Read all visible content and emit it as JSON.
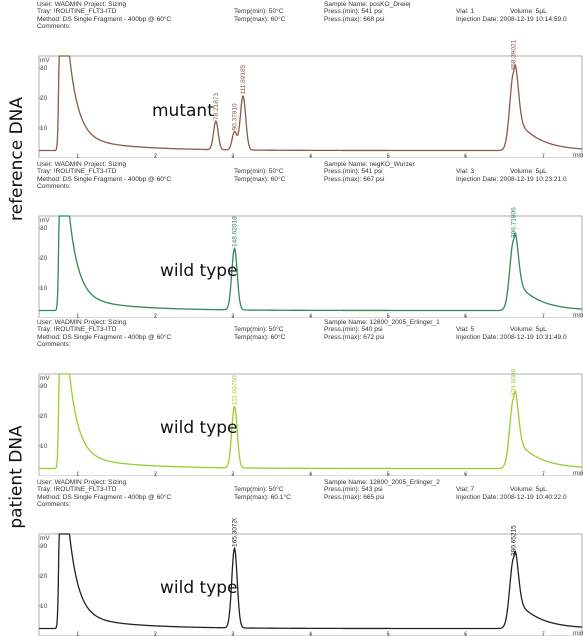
{
  "side_labels": {
    "reference": "reference DNA",
    "patient": "patient DNA"
  },
  "panels": [
    {
      "header": {
        "user": "User: WADMIN",
        "project": "Project: Sizing",
        "tray": "Tray: !ROUTINE_FLT3-ITD",
        "method": "Method: DS Single Fragment - 400bp @ 60°C",
        "comments": "Comments:",
        "temp_min": "Temp(min): 50°C",
        "temp_max": "Temp(max): 60°C",
        "sample": "Sample Name: posKO_Dreiej",
        "press_min": "Press.(min): 541 psi",
        "press_max": "Press.(max): 668 psi",
        "vial": "Vial: 1",
        "volume": "Volume: 5µL",
        "injection": "Injection Date: 2008-12-19 10:14:59.0"
      },
      "annotation": "mutant",
      "color": "#8b5a4a"
    },
    {
      "header": {
        "user": "User: WADMIN",
        "project": "Project: Sizing",
        "tray": "Tray: !ROUTINE_FLT3-ITD",
        "method": "Method: DS Single Fragment - 400bp @ 60°C",
        "comments": "Comments:",
        "temp_min": "Temp(min): 50°C",
        "temp_max": "Temp(max): 60°C",
        "sample": "Sample Name: negKO_Wurzer",
        "press_min": "Press.(min): 541 psi",
        "press_max": "Press.(max): 667 psi",
        "vial": "Vial: 3",
        "volume": "Volume: 5µL",
        "injection": "Injection Date: 2008-12-19 10:23:21.0"
      },
      "annotation": "wild type",
      "color": "#2e8b57"
    },
    {
      "header": {
        "user": "User: WADMIN",
        "project": "Project: Sizing",
        "tray": "Tray: !ROUTINE_FLT3-ITD",
        "method": "Method: DS Single Fragment - 400bp @ 60°C",
        "comments": "Comments:",
        "temp_min": "Temp(min): 50°C",
        "temp_max": "Temp(max): 60°C",
        "sample": "Sample Name: 12600_2005_Erlinger_1",
        "press_min": "Press.(min): 540 psi",
        "press_max": "Press.(max): 672 psi",
        "vial": "Vial: 5",
        "volume": "Volume: 5µL",
        "injection": "Injection Date: 2008-12-19 10:31:49.0"
      },
      "annotation": "wild type",
      "color": "#9acd32"
    },
    {
      "header": {
        "user": "User: WADMIN",
        "project": "Project: Sizing",
        "tray": "Tray: !ROUTINE_FLT3-ITD",
        "method": "Method: DS Single Fragment - 400bp @ 60°C",
        "comments": "Comments:",
        "temp_min": "Temp(min): 50°C",
        "temp_max": "Temp(max): 60.1°C",
        "sample": "Sample Name: 12600_2005_Erlinger_2",
        "press_min": "Press.(min): 543 psi",
        "press_max": "Press.(max): 665 psi",
        "vial": "Vial: 7",
        "volume": "Volume: 5µL",
        "injection": "Injection Date: 2008-12-19 10:40:22.0"
      },
      "annotation": "wild type",
      "color": "#222222"
    }
  ],
  "chart_data": [
    {
      "type": "line",
      "title": "",
      "xlabel": "min",
      "ylabel": "mV",
      "xlim": [
        0.5,
        7.5
      ],
      "ylim": [
        0,
        34
      ],
      "grid": false,
      "x_ticks": [
        1,
        2,
        3,
        4,
        5,
        6,
        7
      ],
      "y_ticks": [
        10,
        20,
        30
      ],
      "baseline": 2.5,
      "dye_front": 0.78,
      "peaks": [
        {
          "x": 2.78,
          "height": 9.5,
          "width": 0.03,
          "label": "78.21873"
        },
        {
          "x": 3.02,
          "height": 6.0,
          "width": 0.03,
          "label": "90.37910"
        },
        {
          "x": 3.13,
          "height": 18.0,
          "width": 0.035,
          "label": "111.89185"
        },
        {
          "x": 6.62,
          "height": 26.0,
          "width": 0.05,
          "tail": true,
          "label": "458.39021"
        }
      ]
    },
    {
      "type": "line",
      "title": "",
      "xlabel": "min",
      "ylabel": "mV",
      "xlim": [
        0.5,
        7.5
      ],
      "ylim": [
        0,
        34
      ],
      "grid": false,
      "x_ticks": [
        1,
        2,
        3,
        4,
        5,
        6,
        7
      ],
      "y_ticks": [
        10,
        20,
        30
      ],
      "baseline": 2.5,
      "dye_front": 0.78,
      "peaks": [
        {
          "x": 3.02,
          "height": 20.5,
          "width": 0.035,
          "label": "148.62018"
        },
        {
          "x": 6.62,
          "height": 23.5,
          "width": 0.05,
          "tail": true,
          "label": "396.71806"
        }
      ]
    },
    {
      "type": "line",
      "title": "",
      "xlabel": "min",
      "ylabel": "mV",
      "xlim": [
        0.5,
        7.5
      ],
      "ylim": [
        0,
        34
      ],
      "grid": false,
      "x_ticks": [
        1,
        2,
        3,
        4,
        5,
        6,
        7
      ],
      "y_ticks": [
        10,
        20,
        30
      ],
      "baseline": 2.5,
      "dye_front": 0.78,
      "peaks": [
        {
          "x": 3.02,
          "height": 20.5,
          "width": 0.035,
          "label": "111.06760"
        },
        {
          "x": 6.62,
          "height": 23.5,
          "width": 0.05,
          "tail": true,
          "label": "424.6008"
        }
      ]
    },
    {
      "type": "line",
      "title": "",
      "xlabel": "min",
      "ylabel": "mV",
      "xlim": [
        0.5,
        7.5
      ],
      "ylim": [
        0,
        34
      ],
      "grid": false,
      "x_ticks": [
        1,
        2,
        3,
        4,
        5,
        6,
        7
      ],
      "y_ticks": [
        10,
        20,
        30
      ],
      "baseline": 2.5,
      "dye_front": 0.78,
      "peaks": [
        {
          "x": 3.02,
          "height": 26.5,
          "width": 0.035,
          "label": "165.30720"
        },
        {
          "x": 6.62,
          "height": 23.5,
          "width": 0.05,
          "tail": true,
          "label": "380.65215"
        }
      ]
    }
  ]
}
